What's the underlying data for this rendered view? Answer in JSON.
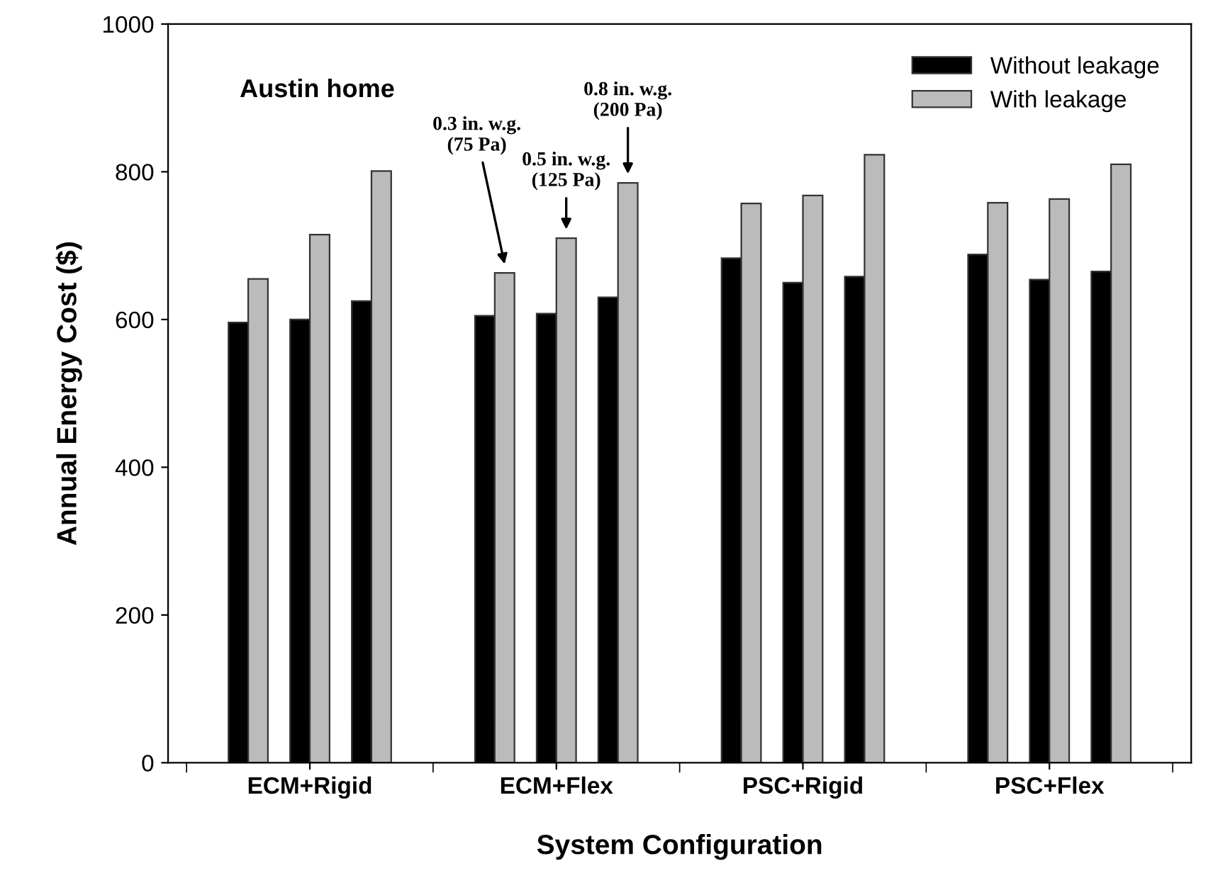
{
  "chart_data": {
    "type": "bar",
    "xlabel": "System Configuration",
    "ylabel": "Annual Energy Cost ($)",
    "categories": [
      null,
      "ECM+Rigid",
      null,
      null,
      "ECM+Flex",
      null,
      null,
      "PSC+Rigid",
      null,
      null,
      "PSC+Flex",
      null
    ],
    "series": [
      {
        "name": "Without leakage",
        "color": "#000000",
        "values": [
          596,
          600,
          625,
          605,
          608,
          630,
          683,
          650,
          658,
          688,
          654,
          665
        ]
      },
      {
        "name": "With leakage",
        "color": "#bbbbbb",
        "values": [
          655,
          715,
          801,
          663,
          710,
          785,
          757,
          768,
          823,
          758,
          763,
          810
        ]
      }
    ],
    "ylim": [
      0,
      1000
    ],
    "yticks": [
      0,
      200,
      400,
      600,
      800,
      1000
    ],
    "grid": false,
    "legend": "top right",
    "annotations": [
      "Austin home",
      "0.3 in. w.g.\n(75 Pa)",
      "0.5 in. w.g.\n(125 Pa)",
      "0.8 in. w.g.\n(200 Pa)"
    ]
  }
}
